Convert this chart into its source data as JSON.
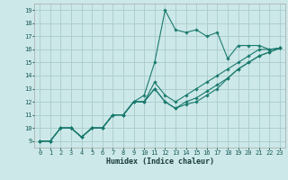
{
  "title": "",
  "xlabel": "Humidex (Indice chaleur)",
  "ylabel": "",
  "background_color": "#cce8e8",
  "grid_color": "#aacccc",
  "line_color": "#1a7a6e",
  "xlim": [
    -0.5,
    23.5
  ],
  "ylim": [
    8.5,
    19.5
  ],
  "xticks": [
    0,
    1,
    2,
    3,
    4,
    5,
    6,
    7,
    8,
    9,
    10,
    11,
    12,
    13,
    14,
    15,
    16,
    17,
    18,
    19,
    20,
    21,
    22,
    23
  ],
  "yticks": [
    9,
    10,
    11,
    12,
    13,
    14,
    15,
    16,
    17,
    18,
    19
  ],
  "lines": [
    {
      "x": [
        0,
        1,
        2,
        3,
        4,
        5,
        6,
        7,
        8,
        9,
        10,
        11,
        12,
        13,
        14,
        15,
        16,
        17,
        18,
        19,
        20,
        21,
        22,
        23
      ],
      "y": [
        9,
        9,
        10,
        10,
        9.3,
        10,
        10,
        11,
        11,
        12,
        12.5,
        15,
        19,
        17.5,
        17.3,
        17.5,
        17,
        17.3,
        15.3,
        16.3,
        16.3,
        16.3,
        16,
        16.1
      ]
    },
    {
      "x": [
        0,
        1,
        2,
        3,
        4,
        5,
        6,
        7,
        8,
        9,
        10,
        11,
        12,
        13,
        14,
        15,
        16,
        17,
        18,
        19,
        20,
        21,
        22,
        23
      ],
      "y": [
        9,
        9,
        10,
        10,
        9.3,
        10,
        10,
        11,
        11,
        12,
        12,
        13.5,
        12.5,
        12,
        12.5,
        13,
        13.5,
        14,
        14.5,
        15,
        15.5,
        16,
        16,
        16.1
      ]
    },
    {
      "x": [
        0,
        1,
        2,
        3,
        4,
        5,
        6,
        7,
        8,
        9,
        10,
        11,
        12,
        13,
        14,
        15,
        16,
        17,
        18,
        19,
        20,
        21,
        22,
        23
      ],
      "y": [
        9,
        9,
        10,
        10,
        9.3,
        10,
        10,
        11,
        11,
        12,
        12,
        13,
        12,
        11.5,
        12,
        12.3,
        12.8,
        13.3,
        13.8,
        14.5,
        15,
        15.5,
        15.8,
        16.1
      ]
    },
    {
      "x": [
        0,
        1,
        2,
        3,
        4,
        5,
        6,
        7,
        8,
        9,
        10,
        11,
        12,
        13,
        14,
        15,
        16,
        17,
        18,
        19,
        20,
        21,
        22,
        23
      ],
      "y": [
        9,
        9,
        10,
        10,
        9.3,
        10,
        10,
        11,
        11,
        12,
        12,
        13,
        12,
        11.5,
        11.8,
        12,
        12.5,
        13,
        13.8,
        14.5,
        15,
        15.5,
        15.8,
        16.1
      ]
    }
  ],
  "xlabel_fontsize": 6.0,
  "tick_fontsize": 5.0,
  "marker": "D",
  "markersize": 1.8,
  "linewidth": 0.8
}
